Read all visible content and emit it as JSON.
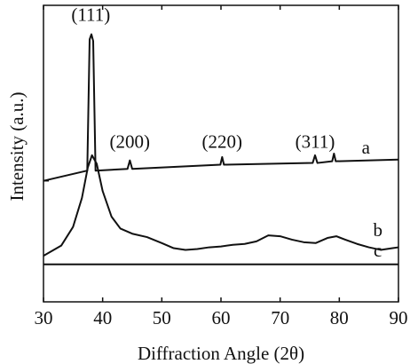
{
  "chart_data": {
    "type": "line",
    "title": "",
    "xlabel": "Diffraction Angle (2θ)",
    "ylabel": "Intensity (a.u.)",
    "xlim": [
      30,
      90
    ],
    "xticks": [
      "30",
      "40",
      "50",
      "60",
      "70",
      "80",
      "90"
    ],
    "yticks_labeled": false,
    "grid": false,
    "legend": "none",
    "series": [
      {
        "name": "a",
        "x": [
          30,
          37.4,
          37.8,
          38.1,
          38.4,
          38.8,
          44.2,
          44.6,
          45.0,
          59.9,
          60.2,
          60.5,
          75.5,
          75.9,
          76.3,
          78.8,
          79.1,
          79.4,
          90
        ],
        "y": [
          0.12,
          0.18,
          0.95,
          0.98,
          0.94,
          0.18,
          0.19,
          0.24,
          0.19,
          0.215,
          0.26,
          0.215,
          0.225,
          0.27,
          0.225,
          0.235,
          0.28,
          0.235,
          0.245
        ],
        "color": "#111111"
      },
      {
        "name": "b",
        "x": [
          30,
          33,
          35,
          36.5,
          37.5,
          38.2,
          39,
          40,
          41.5,
          43,
          45,
          47.5,
          50,
          52,
          54,
          56,
          58,
          60,
          62,
          64,
          66,
          68,
          70,
          72,
          74,
          76,
          78,
          79.5,
          81,
          83,
          85,
          87,
          89,
          90
        ],
        "y": [
          -0.32,
          -0.26,
          -0.15,
          0.02,
          0.2,
          0.27,
          0.22,
          0.06,
          -0.09,
          -0.16,
          -0.19,
          -0.21,
          -0.245,
          -0.275,
          -0.285,
          -0.28,
          -0.27,
          -0.265,
          -0.255,
          -0.25,
          -0.235,
          -0.2,
          -0.205,
          -0.225,
          -0.24,
          -0.245,
          -0.215,
          -0.205,
          -0.225,
          -0.25,
          -0.27,
          -0.285,
          -0.275,
          -0.27
        ],
        "color": "#111111"
      },
      {
        "name": "c",
        "x": [
          30,
          90
        ],
        "y": [
          -0.37,
          -0.37
        ],
        "color": "#111111"
      }
    ],
    "annotations": [
      {
        "text": "(111)",
        "x": 38.0,
        "y": 1.06
      },
      {
        "text": "(200)",
        "x": 44.6,
        "y": 0.315
      },
      {
        "text": "(220)",
        "x": 60.2,
        "y": 0.315
      },
      {
        "text": "(311)",
        "x": 75.9,
        "y": 0.315
      },
      {
        "text": "a",
        "x": 84.5,
        "y": 0.28
      },
      {
        "text": "b",
        "x": 86.5,
        "y": -0.205
      },
      {
        "text": "c",
        "x": 86.5,
        "y": -0.325
      }
    ]
  }
}
